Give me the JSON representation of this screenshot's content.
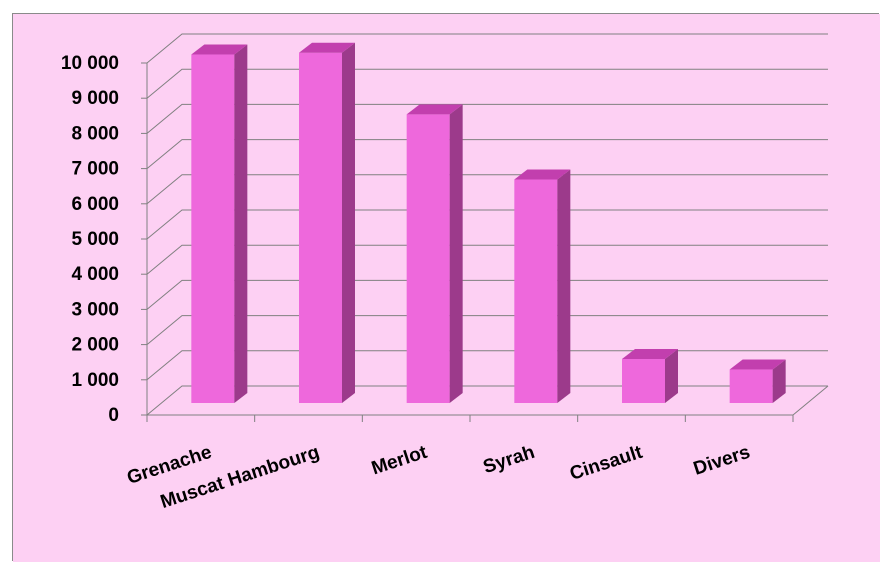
{
  "chart_data": {
    "type": "bar",
    "categories": [
      "Grenache",
      "Muscat Hambourg",
      "Merlot",
      "Syrah",
      "Cinsault",
      "Divers"
    ],
    "values": [
      9900,
      9950,
      8200,
      6350,
      1250,
      950
    ],
    "ylim": [
      0,
      10000
    ],
    "ytick_values": [
      0,
      1000,
      2000,
      3000,
      4000,
      5000,
      6000,
      7000,
      8000,
      9000,
      10000
    ],
    "yticks": [
      "0",
      "1 000",
      "2 000",
      "3 000",
      "4 000",
      "5 000",
      "6 000",
      "7 000",
      "8 000",
      "9 000",
      "10 000"
    ],
    "title": "",
    "xlabel": "",
    "ylabel": "",
    "grid": true,
    "legend": "none",
    "style": "3d-column"
  },
  "colors": {
    "background": "#fdd0f3",
    "bar_front": "#ee68dc",
    "bar_top": "#c23fae",
    "bar_side": "#9c3a8b",
    "grid": "#808080"
  }
}
